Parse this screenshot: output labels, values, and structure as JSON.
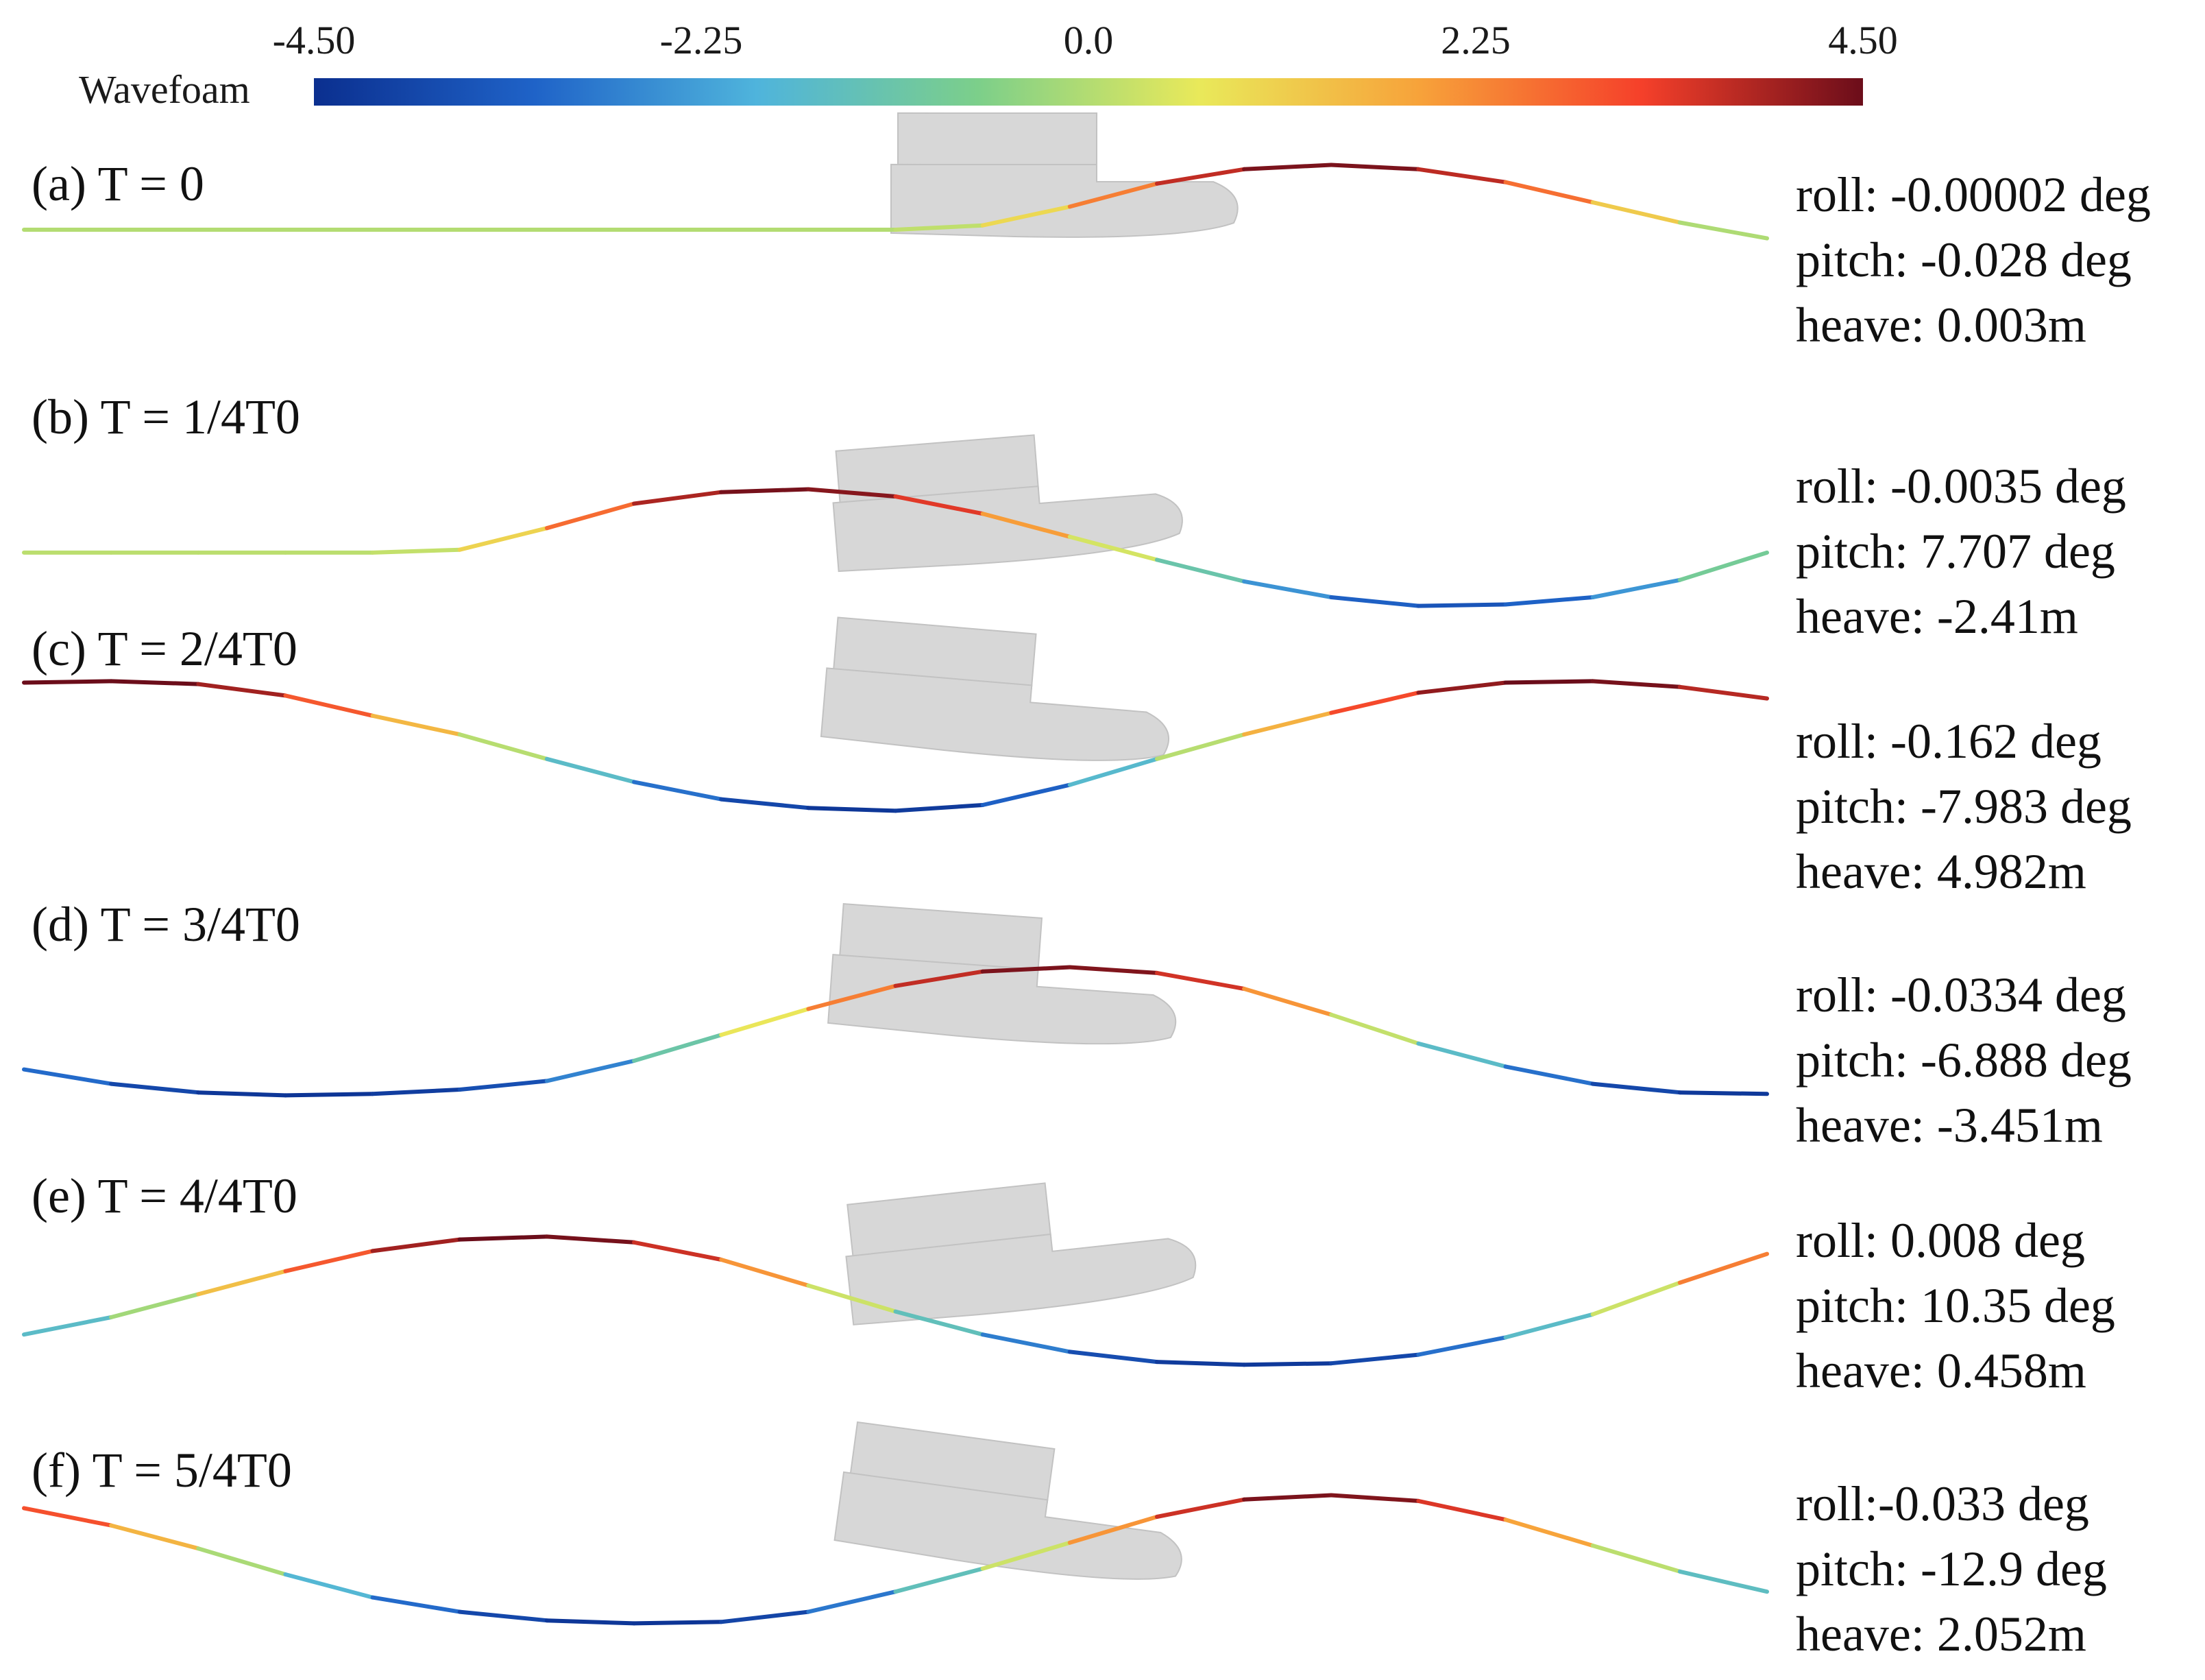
{
  "colorbar": {
    "title": "Wavefoam",
    "ticks": [
      "-4.50",
      "-2.25",
      "0.0",
      "2.25",
      "4.50"
    ],
    "range": [
      -4.5,
      4.5
    ],
    "colors": [
      "#0b2f8f",
      "#1f63c8",
      "#4fb4dc",
      "#7ccf8a",
      "#e9e95a",
      "#f7a23a",
      "#f5402a",
      "#6b0d1a"
    ]
  },
  "colors": {
    "hull": "#d7d7d7",
    "hull_edge": "#c2c2c2"
  },
  "panels": [
    {
      "id": "a",
      "label": "(a) T = 0",
      "readout": {
        "roll": "roll: -0.00002 deg",
        "pitch": "pitch: -0.028 deg",
        "heave": "heave: 0.003m"
      },
      "pitch_deg": -0.028,
      "wave": [
        [
          0,
          0
        ],
        [
          1,
          0
        ],
        [
          2,
          0
        ],
        [
          3,
          0
        ],
        [
          4,
          0
        ],
        [
          5,
          0
        ],
        [
          6,
          0
        ],
        [
          7,
          0
        ],
        [
          8,
          0
        ],
        [
          9,
          0
        ],
        [
          10,
          0
        ],
        [
          11,
          0.3
        ],
        [
          12,
          1.6
        ],
        [
          13,
          3.2
        ],
        [
          14,
          4.2
        ],
        [
          15,
          4.5
        ],
        [
          16,
          4.2
        ],
        [
          17,
          3.3
        ],
        [
          18,
          1.9
        ],
        [
          19,
          0.5
        ],
        [
          20,
          -0.6
        ]
      ]
    },
    {
      "id": "b",
      "label": "(b) T = 1/4T0",
      "readout": {
        "roll": "roll: -0.0035 deg",
        "pitch": "pitch: 7.707 deg",
        "heave": "heave: -2.41m"
      },
      "pitch_deg": 7.707,
      "wave": [
        [
          0,
          0.1
        ],
        [
          1,
          0.1
        ],
        [
          2,
          0.1
        ],
        [
          3,
          0.1
        ],
        [
          4,
          0.1
        ],
        [
          5,
          0.3
        ],
        [
          6,
          1.8
        ],
        [
          7,
          3.5
        ],
        [
          8,
          4.3
        ],
        [
          9,
          4.5
        ],
        [
          10,
          4.0
        ],
        [
          11,
          2.8
        ],
        [
          12,
          1.2
        ],
        [
          13,
          -0.4
        ],
        [
          14,
          -1.9
        ],
        [
          15,
          -3.0
        ],
        [
          16,
          -3.6
        ],
        [
          17,
          -3.5
        ],
        [
          18,
          -3.0
        ],
        [
          19,
          -1.8
        ],
        [
          20,
          0.1
        ]
      ]
    },
    {
      "id": "c",
      "label": "(c) T = 2/4T0",
      "readout": {
        "roll": "roll: -0.162 deg",
        "pitch": "pitch: -7.983 deg",
        "heave": "heave: 4.982m"
      },
      "pitch_deg": -7.983,
      "wave": [
        [
          0,
          4.5
        ],
        [
          1,
          4.6
        ],
        [
          2,
          4.4
        ],
        [
          3,
          3.6
        ],
        [
          4,
          2.2
        ],
        [
          5,
          0.9
        ],
        [
          6,
          -0.8
        ],
        [
          7,
          -2.4
        ],
        [
          8,
          -3.6
        ],
        [
          9,
          -4.2
        ],
        [
          10,
          -4.4
        ],
        [
          11,
          -4.0
        ],
        [
          12,
          -2.6
        ],
        [
          13,
          -0.8
        ],
        [
          14,
          0.9
        ],
        [
          15,
          2.4
        ],
        [
          16,
          3.8
        ],
        [
          17,
          4.5
        ],
        [
          18,
          4.6
        ],
        [
          19,
          4.2
        ],
        [
          20,
          3.4
        ]
      ]
    },
    {
      "id": "d",
      "label": "(d) T = 3/4T0",
      "readout": {
        "roll": "roll: -0.0334 deg",
        "pitch": "pitch: -6.888 deg",
        "heave": "heave: -3.451m"
      },
      "pitch_deg": -6.888,
      "wave": [
        [
          0,
          -2.6
        ],
        [
          1,
          -3.6
        ],
        [
          2,
          -4.2
        ],
        [
          3,
          -4.4
        ],
        [
          4,
          -4.3
        ],
        [
          5,
          -4.0
        ],
        [
          6,
          -3.4
        ],
        [
          7,
          -2.0
        ],
        [
          8,
          -0.2
        ],
        [
          9,
          1.6
        ],
        [
          10,
          3.2
        ],
        [
          11,
          4.2
        ],
        [
          12,
          4.5
        ],
        [
          13,
          4.1
        ],
        [
          14,
          3.0
        ],
        [
          15,
          1.2
        ],
        [
          16,
          -0.8
        ],
        [
          17,
          -2.4
        ],
        [
          18,
          -3.6
        ],
        [
          19,
          -4.2
        ],
        [
          20,
          -4.3
        ]
      ]
    },
    {
      "id": "e",
      "label": "(e) T = 4/4T0",
      "readout": {
        "roll": "roll: 0.008 deg",
        "pitch": "pitch: 10.35 deg",
        "heave": "heave: 0.458m"
      },
      "pitch_deg": 10.35,
      "wave": [
        [
          0,
          -2.2
        ],
        [
          1,
          -1.0
        ],
        [
          2,
          0.6
        ],
        [
          3,
          2.2
        ],
        [
          4,
          3.6
        ],
        [
          5,
          4.4
        ],
        [
          6,
          4.6
        ],
        [
          7,
          4.2
        ],
        [
          8,
          3.0
        ],
        [
          9,
          1.2
        ],
        [
          10,
          -0.6
        ],
        [
          11,
          -2.2
        ],
        [
          12,
          -3.4
        ],
        [
          13,
          -4.1
        ],
        [
          14,
          -4.3
        ],
        [
          15,
          -4.2
        ],
        [
          16,
          -3.6
        ],
        [
          17,
          -2.4
        ],
        [
          18,
          -0.8
        ],
        [
          19,
          1.4
        ],
        [
          20,
          3.4
        ]
      ]
    },
    {
      "id": "f",
      "label": "(f) T = 5/4T0",
      "readout": {
        "roll": "roll:-0.033 deg",
        "pitch": "pitch: -12.9 deg",
        "heave": "heave: 2.052m"
      },
      "pitch_deg": -12.9,
      "wave": [
        [
          0,
          3.6
        ],
        [
          1,
          2.4
        ],
        [
          2,
          0.8
        ],
        [
          3,
          -1.0
        ],
        [
          4,
          -2.6
        ],
        [
          5,
          -3.6
        ],
        [
          6,
          -4.2
        ],
        [
          7,
          -4.4
        ],
        [
          8,
          -4.3
        ],
        [
          9,
          -3.6
        ],
        [
          10,
          -2.2
        ],
        [
          11,
          -0.6
        ],
        [
          12,
          1.2
        ],
        [
          13,
          3.0
        ],
        [
          14,
          4.2
        ],
        [
          15,
          4.5
        ],
        [
          16,
          4.1
        ],
        [
          17,
          2.8
        ],
        [
          18,
          1.0
        ],
        [
          19,
          -0.8
        ],
        [
          20,
          -2.2
        ]
      ]
    }
  ]
}
